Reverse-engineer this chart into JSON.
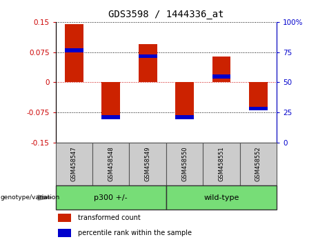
{
  "title": "GDS3598 / 1444336_at",
  "samples": [
    "GSM458547",
    "GSM458548",
    "GSM458549",
    "GSM458550",
    "GSM458551",
    "GSM458552"
  ],
  "red_values": [
    0.145,
    -0.085,
    0.095,
    -0.085,
    0.065,
    -0.065
  ],
  "blue_values": [
    0.08,
    -0.086,
    0.065,
    -0.086,
    0.015,
    -0.065
  ],
  "ylim": [
    -0.15,
    0.15
  ],
  "yticks_left": [
    -0.15,
    -0.075,
    0,
    0.075,
    0.15
  ],
  "ytick_labels_left": [
    "-0.15",
    "-0.075",
    "0",
    "0.075",
    "0.15"
  ],
  "ytick_labels_right": [
    "0",
    "25",
    "50",
    "75",
    "100%"
  ],
  "left_color": "#cc0000",
  "right_color": "#0000cc",
  "bar_color": "#cc2200",
  "blue_marker_color": "#0000cc",
  "groups": [
    {
      "label": "p300 +/-",
      "start": 0,
      "end": 3
    },
    {
      "label": "wild-type",
      "start": 3,
      "end": 6
    }
  ],
  "group_color": "#77dd77",
  "sample_box_color": "#cccccc",
  "bar_width": 0.5,
  "figsize": [
    4.61,
    3.54
  ],
  "dpi": 100
}
